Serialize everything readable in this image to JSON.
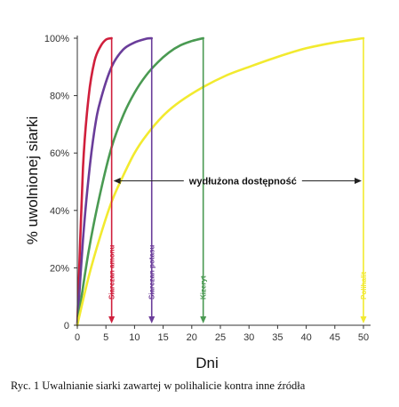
{
  "caption": "Ryc. 1 Uwalnianie siarki zawartej w polihalicie kontra inne źródła",
  "chart_data": {
    "type": "line",
    "xlabel": "Dni",
    "ylabel": "% uwolnionej siarki",
    "xlim": [
      0,
      50
    ],
    "ylim": [
      0,
      100
    ],
    "x_ticks": [
      0,
      5,
      10,
      15,
      20,
      25,
      30,
      35,
      40,
      45,
      50
    ],
    "x_tick_labels": [
      "0",
      "5",
      "10",
      "15",
      "20",
      "25",
      "30",
      "35",
      "40",
      "45",
      "50"
    ],
    "y_ticks": [
      0,
      20,
      40,
      60,
      80,
      100
    ],
    "y_tick_labels": [
      "0",
      "20%",
      "40%",
      "60%",
      "80%",
      "100%"
    ],
    "grid": false,
    "annotation": "wydłużona dostępność",
    "annotation_span": [
      6,
      50
    ],
    "annotation_y": 50,
    "series": [
      {
        "name": "Siarczan amonu",
        "color": "#d01f3c",
        "completion_day": 6,
        "x": [
          0,
          1,
          2,
          3,
          4,
          5,
          6
        ],
        "y": [
          0,
          55,
          80,
          92,
          97,
          99.5,
          100
        ]
      },
      {
        "name": "Siarczan potasu",
        "color": "#6a3d9a",
        "completion_day": 13,
        "x": [
          0,
          1,
          2,
          3,
          4,
          6,
          8,
          10,
          12,
          13
        ],
        "y": [
          0,
          30,
          52,
          68,
          78,
          90,
          96,
          98.5,
          99.8,
          100
        ]
      },
      {
        "name": "Kizeryt",
        "color": "#4a9a52",
        "completion_day": 22,
        "x": [
          0,
          2,
          4,
          6,
          8,
          10,
          12,
          14,
          16,
          18,
          20,
          22
        ],
        "y": [
          0,
          26,
          46,
          62,
          73,
          81,
          87,
          91.5,
          95,
          97.5,
          99,
          100
        ]
      },
      {
        "name": "Polihalit",
        "color": "#f2ea2f",
        "completion_day": 50,
        "x": [
          0,
          2,
          4,
          6,
          8,
          10,
          12,
          15,
          18,
          22,
          26,
          30,
          35,
          40,
          45,
          50
        ],
        "y": [
          0,
          17,
          31,
          43,
          52,
          60,
          66,
          73,
          78,
          83,
          87,
          90,
          93.5,
          96.5,
          98.5,
          100
        ]
      }
    ]
  }
}
